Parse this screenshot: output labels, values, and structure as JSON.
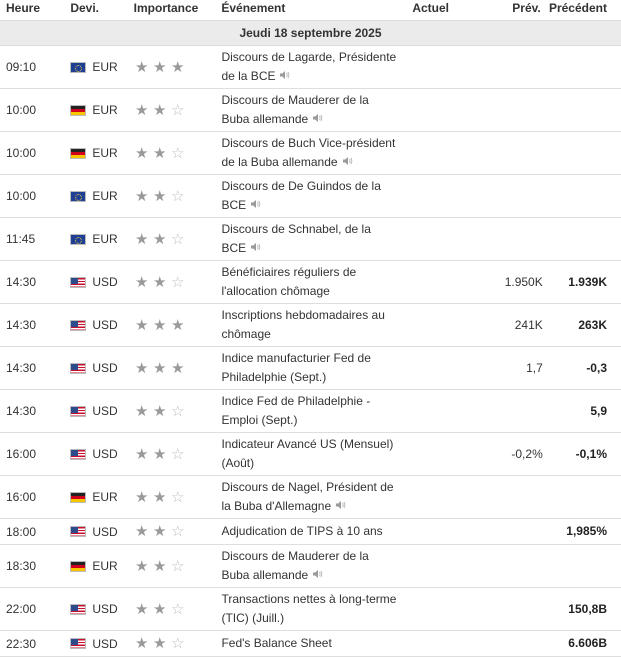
{
  "header": {
    "time": "Heure",
    "currency": "Devi.",
    "importance": "Importance",
    "event": "Événement",
    "actual": "Actuel",
    "forecast": "Prév.",
    "previous": "Précédent"
  },
  "day": "Jeudi 18 septembre 2025",
  "colors": {
    "star_filled": "#9a9a9a",
    "star_empty": "#bdbdbd",
    "day_bar": "#ebebeb",
    "row_border": "#dedede"
  },
  "rows": [
    {
      "time": "09:10",
      "flag": "eu-flag-icon",
      "currency": "EUR",
      "stars": 3,
      "line1": "Discours de Lagarde, Présidente",
      "line2": "de la BCE",
      "speaker": true,
      "actual": "",
      "forecast": "",
      "previous": ""
    },
    {
      "time": "10:00",
      "flag": "de-flag-icon",
      "currency": "EUR",
      "stars": 2,
      "line1": "Discours de Mauderer de la",
      "line2": "Buba allemande",
      "speaker": true,
      "actual": "",
      "forecast": "",
      "previous": ""
    },
    {
      "time": "10:00",
      "flag": "de-flag-icon",
      "currency": "EUR",
      "stars": 2,
      "line1": "Discours de Buch Vice-président",
      "line2": "de la Buba allemande",
      "speaker": true,
      "actual": "",
      "forecast": "",
      "previous": ""
    },
    {
      "time": "10:00",
      "flag": "eu-flag-icon",
      "currency": "EUR",
      "stars": 2,
      "line1": "Discours de De Guindos de la",
      "line2": "BCE",
      "speaker": true,
      "actual": "",
      "forecast": "",
      "previous": ""
    },
    {
      "time": "11:45",
      "flag": "eu-flag-icon",
      "currency": "EUR",
      "stars": 2,
      "line1": "Discours de Schnabel, de la",
      "line2": "BCE",
      "speaker": true,
      "actual": "",
      "forecast": "",
      "previous": ""
    },
    {
      "time": "14:30",
      "flag": "us-flag-icon",
      "currency": "USD",
      "stars": 2,
      "line1": "Bénéficiaires réguliers de",
      "line2": "l'allocation chômage",
      "speaker": false,
      "actual": "",
      "forecast": "1.950K",
      "previous": "1.939K"
    },
    {
      "time": "14:30",
      "flag": "us-flag-icon",
      "currency": "USD",
      "stars": 3,
      "line1": "Inscriptions hebdomadaires au",
      "line2": "chômage",
      "speaker": false,
      "actual": "",
      "forecast": "241K",
      "previous": "263K"
    },
    {
      "time": "14:30",
      "flag": "us-flag-icon",
      "currency": "USD",
      "stars": 3,
      "line1": "Indice manufacturier Fed de",
      "line2": "Philadelphie (Sept.)",
      "speaker": false,
      "actual": "",
      "forecast": "1,7",
      "previous": "-0,3"
    },
    {
      "time": "14:30",
      "flag": "us-flag-icon",
      "currency": "USD",
      "stars": 2,
      "line1": "Indice Fed de Philadelphie -",
      "line2": "Emploi (Sept.)",
      "speaker": false,
      "actual": "",
      "forecast": "",
      "previous": "5,9"
    },
    {
      "time": "16:00",
      "flag": "us-flag-icon",
      "currency": "USD",
      "stars": 2,
      "line1": "Indicateur Avancé US (Mensuel)",
      "line2": "(Août)",
      "speaker": false,
      "actual": "",
      "forecast": "-0,2%",
      "previous": "-0,1%"
    },
    {
      "time": "16:00",
      "flag": "de-flag-icon",
      "currency": "EUR",
      "stars": 2,
      "line1": "Discours de Nagel, Président de",
      "line2": "la Buba d'Allemagne",
      "speaker": true,
      "actual": "",
      "forecast": "",
      "previous": ""
    },
    {
      "time": "18:00",
      "flag": "us-flag-icon",
      "currency": "USD",
      "stars": 2,
      "line1": "Adjudication de TIPS à 10 ans",
      "line2": "",
      "speaker": false,
      "actual": "",
      "forecast": "",
      "previous": "1,985%"
    },
    {
      "time": "18:30",
      "flag": "de-flag-icon",
      "currency": "EUR",
      "stars": 2,
      "line1": "Discours de Mauderer de la",
      "line2": "Buba allemande",
      "speaker": true,
      "actual": "",
      "forecast": "",
      "previous": ""
    },
    {
      "time": "22:00",
      "flag": "us-flag-icon",
      "currency": "USD",
      "stars": 2,
      "line1": "Transactions nettes à long-terme",
      "line2": "(TIC) (Juill.)",
      "speaker": false,
      "actual": "",
      "forecast": "",
      "previous": "150,8B"
    },
    {
      "time": "22:30",
      "flag": "us-flag-icon",
      "currency": "USD",
      "stars": 2,
      "line1": "Fed's Balance Sheet",
      "line2": "",
      "speaker": false,
      "actual": "",
      "forecast": "",
      "previous": "6.606B"
    }
  ]
}
